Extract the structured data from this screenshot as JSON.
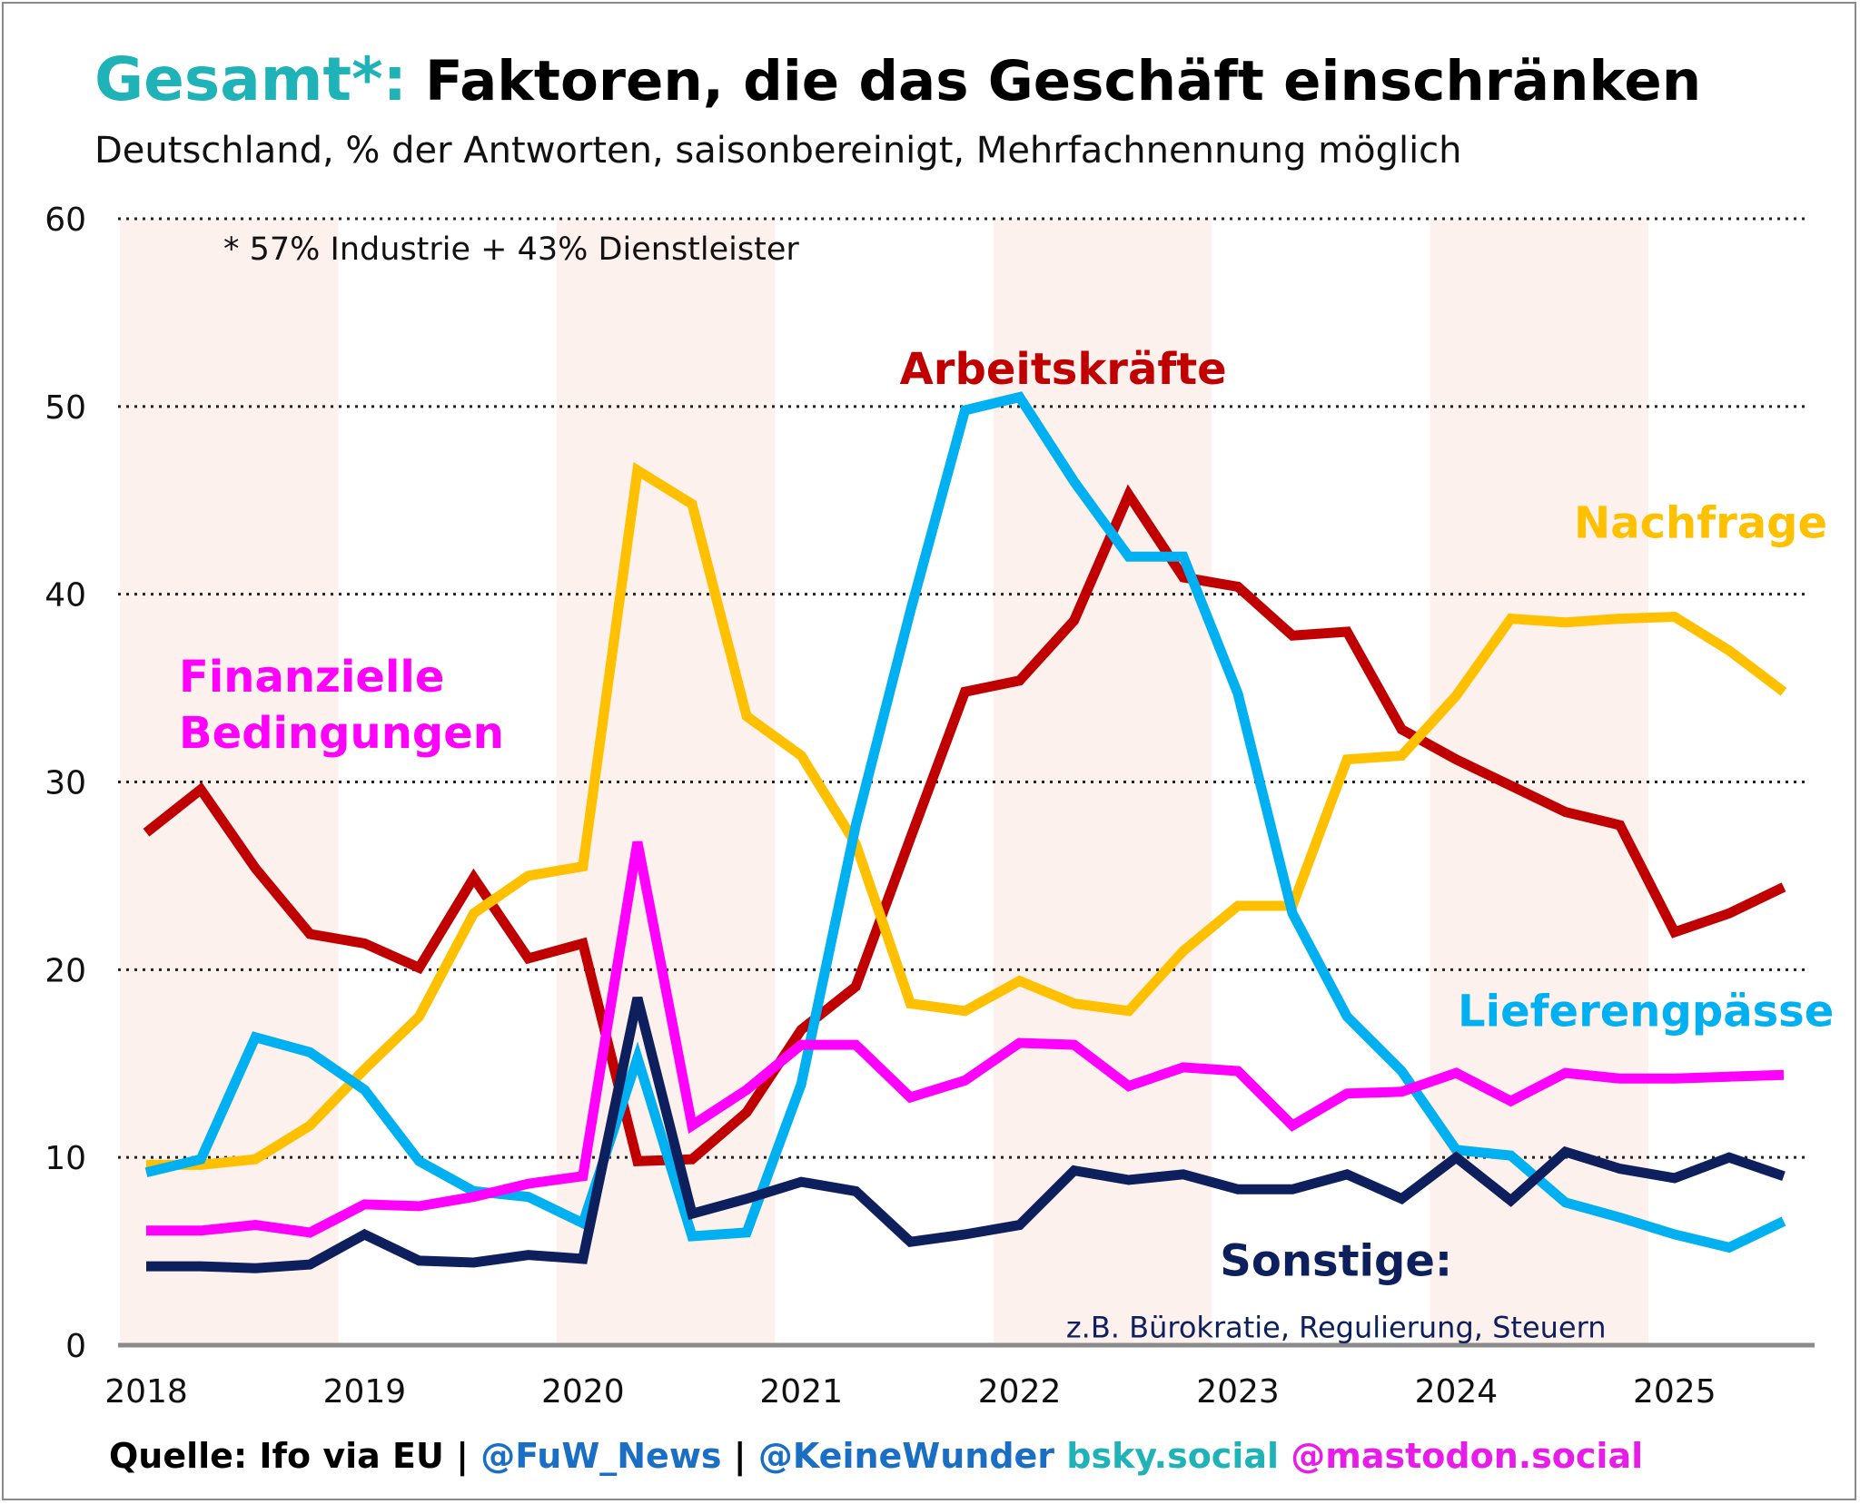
{
  "header": {
    "title_prefix": "Gesamt*:",
    "title_main": "Faktoren, die das Geschäft einschränken",
    "subtitle": "Deutschland, % der Antworten, saisonbereinigt, Mehrfachnennung möglich",
    "colors": {
      "prefix": "#1fb3b8",
      "main": "#000000"
    }
  },
  "footer": {
    "parts": [
      {
        "text": "Quelle: Ifo via EU | ",
        "color": "#000000"
      },
      {
        "text": "@FuW_News",
        "color": "#1a6fc4"
      },
      {
        "text": " | ",
        "color": "#000000"
      },
      {
        "text": "@KeineWunder",
        "color": "#1a6fc4"
      },
      {
        "text": " bsky.social",
        "color": "#1fb3b8"
      },
      {
        "text": " @mastodon.social",
        "color": "#e81ce8"
      }
    ]
  },
  "chart_data": {
    "type": "line",
    "title": "Gesamt*: Faktoren, die das Geschäft einschränken",
    "ylim": [
      0,
      60
    ],
    "yticks": [
      0,
      10,
      20,
      30,
      40,
      50,
      60
    ],
    "xlim": [
      2018,
      2025.65
    ],
    "xticks": [
      2018,
      2019,
      2020,
      2021,
      2022,
      2023,
      2024,
      2025
    ],
    "grid": "horizontal dotted",
    "note": "* 57% Industrie + 43% Dienstleister",
    "shaded_periods": [
      [
        2017.88,
        2018.88
      ],
      [
        2019.88,
        2020.88
      ],
      [
        2021.88,
        2022.88
      ],
      [
        2023.88,
        2024.88
      ]
    ],
    "shade_color": "#fdf1ee",
    "series": [
      {
        "name": "Arbeitskräfte",
        "color": "#c00000",
        "label": {
          "lines": [
            "Arbeitskräfte"
          ],
          "x": 2022.2,
          "y": 51.2,
          "anchor": "middle"
        },
        "x": [
          2018.0,
          2018.25,
          2018.5,
          2018.75,
          2019.0,
          2019.25,
          2019.5,
          2019.75,
          2020.0,
          2020.25,
          2020.5,
          2020.75,
          2021.0,
          2021.25,
          2021.5,
          2021.75,
          2022.0,
          2022.25,
          2022.5,
          2022.75,
          2023.0,
          2023.25,
          2023.5,
          2023.75,
          2024.0,
          2024.25,
          2024.5,
          2024.75,
          2025.0,
          2025.25,
          2025.5
        ],
        "y": [
          27.3,
          29.6,
          25.4,
          21.9,
          21.4,
          20.1,
          24.9,
          20.6,
          21.4,
          9.8,
          9.9,
          12.4,
          16.8,
          19.1,
          27.0,
          34.8,
          35.4,
          38.6,
          45.3,
          40.9,
          40.4,
          37.8,
          38.0,
          32.8,
          31.2,
          29.8,
          28.4,
          27.7,
          22.0,
          23.0,
          24.4
        ]
      },
      {
        "name": "Nachfrage",
        "color": "#ffc000",
        "label": {
          "lines": [
            "Nachfrage"
          ],
          "x": 2025.7,
          "y": 43.0,
          "anchor": "end"
        },
        "x": [
          2018.0,
          2018.25,
          2018.5,
          2018.75,
          2019.0,
          2019.25,
          2019.5,
          2019.75,
          2020.0,
          2020.25,
          2020.5,
          2020.75,
          2021.0,
          2021.25,
          2021.5,
          2021.75,
          2022.0,
          2022.25,
          2022.5,
          2022.75,
          2023.0,
          2023.25,
          2023.5,
          2023.75,
          2024.0,
          2024.25,
          2024.5,
          2024.75,
          2025.0,
          2025.25,
          2025.5
        ],
        "y": [
          9.6,
          9.6,
          9.9,
          11.7,
          14.7,
          17.5,
          23.0,
          25.0,
          25.5,
          46.6,
          44.8,
          33.5,
          31.4,
          26.7,
          18.2,
          17.8,
          19.4,
          18.2,
          17.8,
          21.0,
          23.4,
          23.4,
          31.2,
          31.4,
          34.6,
          38.7,
          38.5,
          38.7,
          38.8,
          37.0,
          34.8
        ]
      },
      {
        "name": "Lieferengpässe",
        "color": "#00b0f0",
        "label": {
          "lines": [
            "Lieferengpässe"
          ],
          "x": 2025.73,
          "y": 17.0,
          "anchor": "end"
        },
        "x": [
          2018.0,
          2018.25,
          2018.5,
          2018.75,
          2019.0,
          2019.25,
          2019.5,
          2019.75,
          2020.0,
          2020.25,
          2020.5,
          2020.75,
          2021.0,
          2021.25,
          2021.5,
          2021.75,
          2022.0,
          2022.25,
          2022.5,
          2022.75,
          2023.0,
          2023.25,
          2023.5,
          2023.75,
          2024.0,
          2024.25,
          2024.5,
          2024.75,
          2025.0,
          2025.25,
          2025.5
        ],
        "y": [
          9.2,
          9.9,
          16.4,
          15.6,
          13.6,
          9.8,
          8.2,
          7.9,
          6.5,
          15.3,
          5.8,
          6.0,
          13.9,
          27.7,
          39.1,
          49.8,
          50.5,
          46.0,
          42.0,
          42.0,
          34.7,
          23.0,
          17.5,
          14.6,
          10.4,
          10.1,
          7.6,
          6.8,
          5.9,
          5.2,
          6.6
        ]
      },
      {
        "name": "Finanzielle Bedingungen",
        "color": "#ff00ff",
        "label": {
          "lines": [
            "Finanzielle",
            "Bedingungen"
          ],
          "x": 2018.15,
          "y": 34.8,
          "anchor": "start"
        },
        "x": [
          2018.0,
          2018.25,
          2018.5,
          2018.75,
          2019.0,
          2019.25,
          2019.5,
          2019.75,
          2020.0,
          2020.25,
          2020.5,
          2020.75,
          2021.0,
          2021.25,
          2021.5,
          2021.75,
          2022.0,
          2022.25,
          2022.5,
          2022.75,
          2023.0,
          2023.25,
          2023.5,
          2023.75,
          2024.0,
          2024.25,
          2024.5,
          2024.75,
          2025.0,
          2025.25,
          2025.5
        ],
        "y": [
          6.1,
          6.1,
          6.4,
          6.0,
          7.5,
          7.4,
          7.9,
          8.6,
          9.0,
          26.8,
          11.7,
          13.6,
          16.0,
          16.0,
          13.2,
          14.1,
          16.1,
          16.0,
          13.8,
          14.8,
          14.6,
          11.7,
          13.4,
          13.5,
          14.5,
          13.0,
          14.5,
          14.2,
          14.2,
          14.3,
          14.4
        ]
      },
      {
        "name": "Sonstige",
        "color": "#0d1f5c",
        "label": {
          "lines": [
            "Sonstige:"
          ],
          "x": 2023.45,
          "y": 3.7,
          "anchor": "middle"
        },
        "x": [
          2018.0,
          2018.25,
          2018.5,
          2018.75,
          2019.0,
          2019.25,
          2019.5,
          2019.75,
          2020.0,
          2020.25,
          2020.5,
          2020.75,
          2021.0,
          2021.25,
          2021.5,
          2021.75,
          2022.0,
          2022.25,
          2022.5,
          2022.75,
          2023.0,
          2023.25,
          2023.5,
          2023.75,
          2024.0,
          2024.25,
          2024.5,
          2024.75,
          2025.0,
          2025.25,
          2025.5
        ],
        "y": [
          4.2,
          4.2,
          4.1,
          4.3,
          5.9,
          4.5,
          4.4,
          4.8,
          4.6,
          18.5,
          7.0,
          7.8,
          8.7,
          8.2,
          5.5,
          5.9,
          6.4,
          9.3,
          8.8,
          9.1,
          8.3,
          8.3,
          9.1,
          7.8,
          10.0,
          7.7,
          10.3,
          9.4,
          8.9,
          10.0,
          9.0
        ]
      }
    ],
    "annotations": [
      {
        "text": "z.B. Bürokratie, Regulierung, Steuern",
        "x": 2023.45,
        "y": 1.0,
        "anchor": "middle",
        "color": "#0d1f5c"
      }
    ]
  }
}
